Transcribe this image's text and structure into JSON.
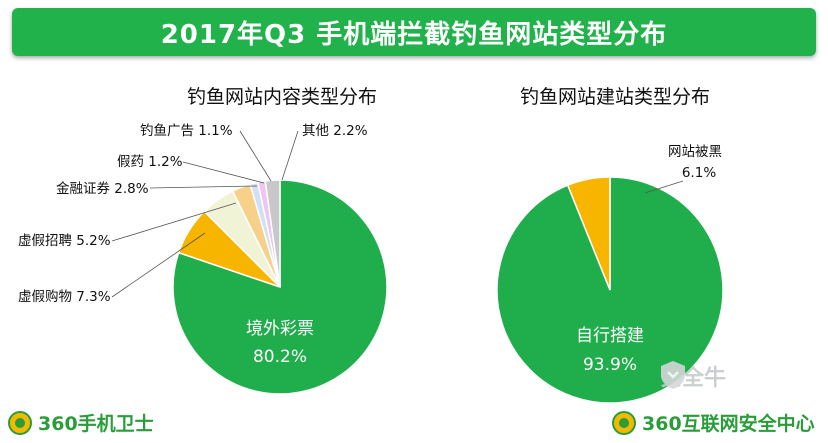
{
  "banner": {
    "title": "2017年Q3 手机端拦截钓鱼网站类型分布"
  },
  "chart_data": [
    {
      "type": "pie",
      "title": "钓鱼网站内容类型分布",
      "slices": [
        {
          "label": "境外彩票",
          "value": 80.2,
          "display": "80.2%",
          "color": "#1fae4b"
        },
        {
          "label": "虚假购物",
          "value": 7.3,
          "display": "7.3%",
          "color": "#f7b500"
        },
        {
          "label": "虚假招聘",
          "value": 5.2,
          "display": "5.2%",
          "color": "#f0f3d6"
        },
        {
          "label": "金融证券",
          "value": 2.8,
          "display": "2.8%",
          "color": "#f7d08a"
        },
        {
          "label": "假药",
          "value": 1.2,
          "display": "1.2%",
          "color": "#d2e0f4"
        },
        {
          "label": "钓鱼广告",
          "value": 1.1,
          "display": "1.1%",
          "color": "#efc4f0"
        },
        {
          "label": "其他",
          "value": 2.2,
          "display": "2.2%",
          "color": "#c8c8c8"
        }
      ]
    },
    {
      "type": "pie",
      "title": "钓鱼网站建站类型分布",
      "slices": [
        {
          "label": "自行搭建",
          "value": 93.9,
          "display": "93.9%",
          "color": "#1fae4b"
        },
        {
          "label": "网站被黑",
          "value": 6.1,
          "display": "6.1%",
          "color": "#f7b500"
        }
      ]
    }
  ],
  "footer": {
    "brand_left": "360手机卫士",
    "brand_right": "360互联网安全中心",
    "watermark": "安全牛"
  }
}
